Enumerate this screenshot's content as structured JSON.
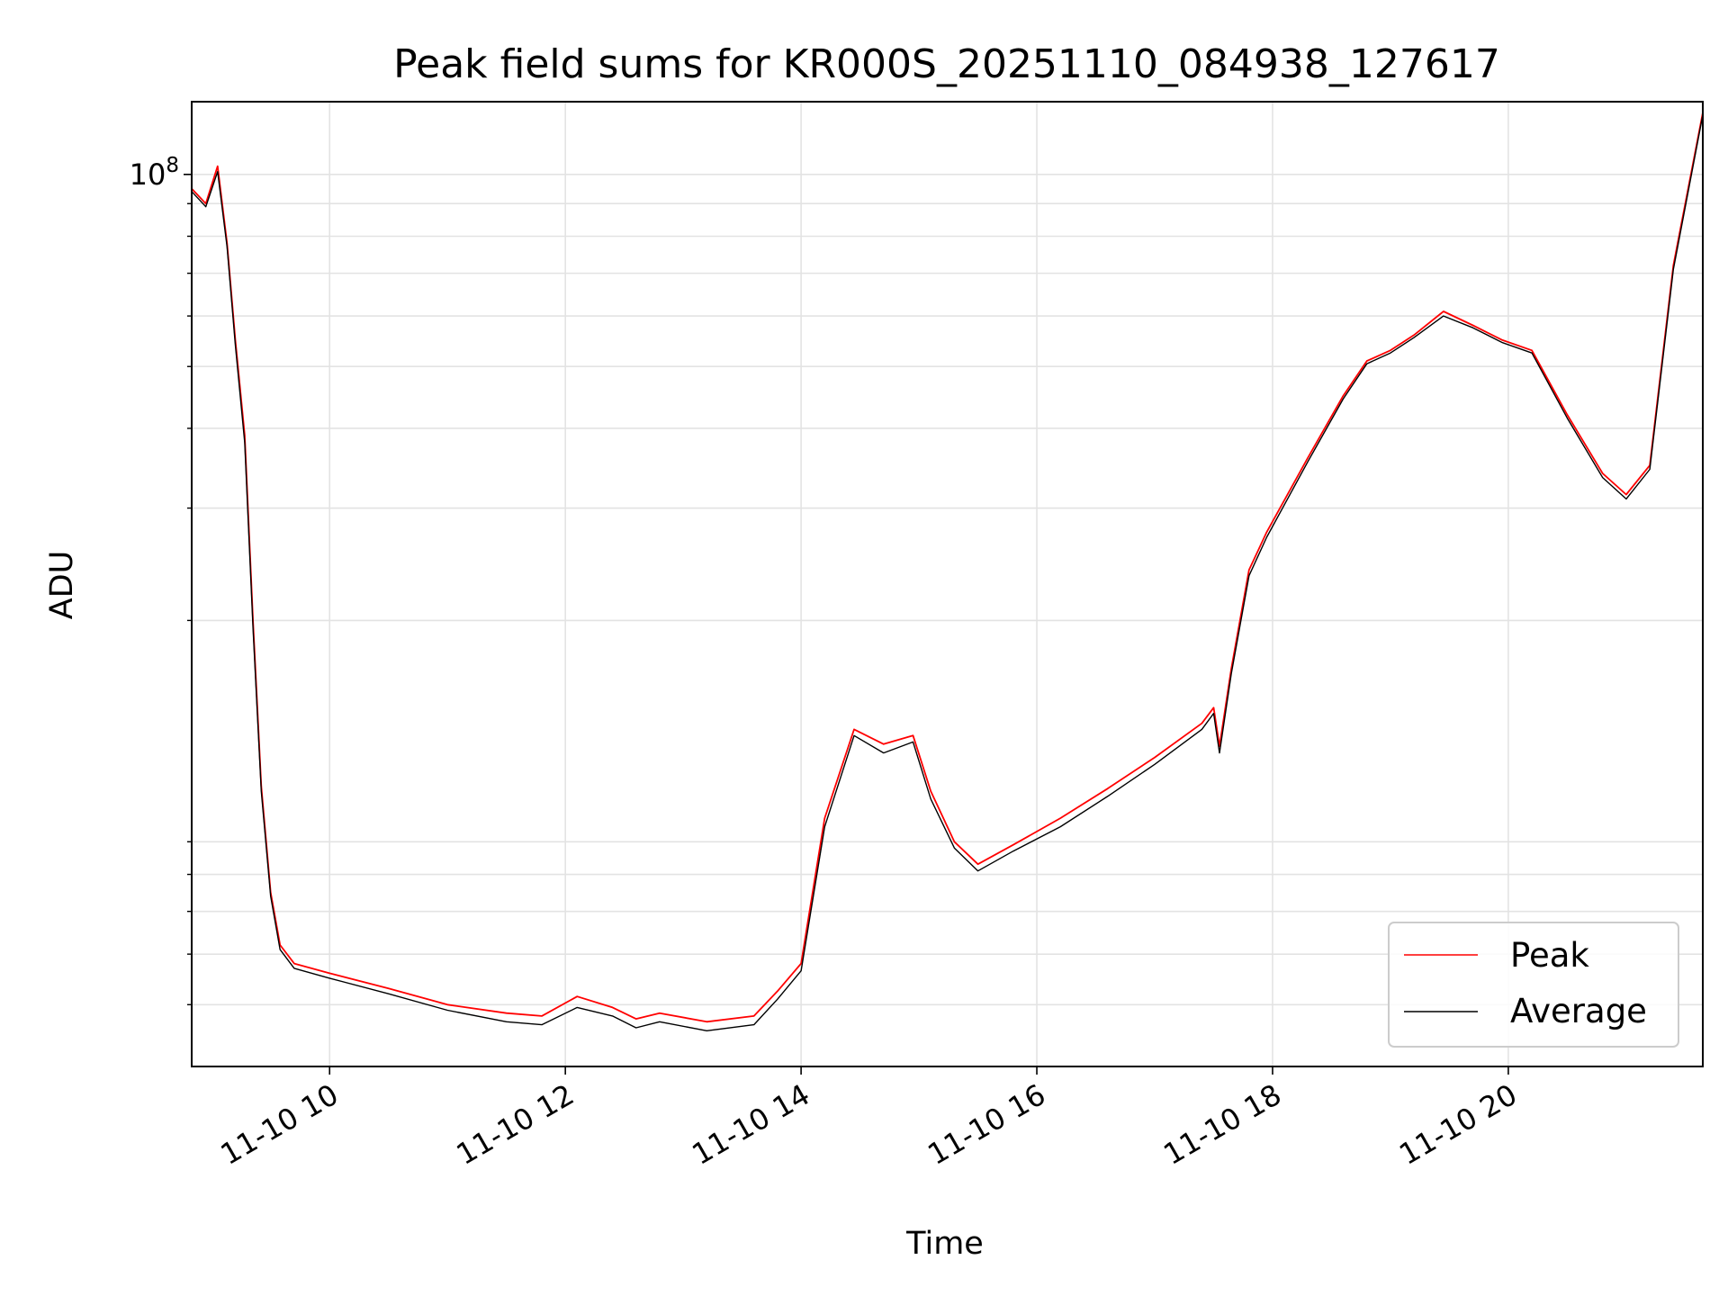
{
  "chart_data": {
    "type": "line",
    "title": "Peak field sums for KR000S_20251110_084938_127617",
    "xlabel": "Time",
    "ylabel": "ADU",
    "yscale": "log",
    "ylim": [
      4000000,
      130000000
    ],
    "xlim": [
      8.83,
      21.65
    ],
    "x_unit": "hours since 2025-11-10 00:00",
    "grid": true,
    "x_ticks": [
      {
        "value": 10,
        "label": "11-10 10"
      },
      {
        "value": 12,
        "label": "11-10 12"
      },
      {
        "value": 14,
        "label": "11-10 14"
      },
      {
        "value": 16,
        "label": "11-10 16"
      },
      {
        "value": 18,
        "label": "11-10 18"
      },
      {
        "value": 20,
        "label": "11-10 20"
      }
    ],
    "y_major_ticks": [
      {
        "value": 100000000,
        "base": "10",
        "exp": "8"
      }
    ],
    "y_minor_ticks": [
      5000000,
      6000000,
      7000000,
      8000000,
      9000000,
      20000000,
      30000000,
      40000000,
      50000000,
      60000000,
      70000000,
      80000000,
      90000000
    ],
    "legend": {
      "position": "lower-right"
    },
    "series": [
      {
        "name": "Peak",
        "color": "#ff0000",
        "x": [
          8.83,
          8.95,
          9.05,
          9.13,
          9.2,
          9.28,
          9.35,
          9.42,
          9.5,
          9.58,
          9.7,
          10.0,
          10.5,
          11.0,
          11.5,
          11.8,
          12.1,
          12.4,
          12.6,
          12.8,
          13.2,
          13.6,
          13.8,
          14.0,
          14.2,
          14.45,
          14.7,
          14.95,
          15.1,
          15.3,
          15.5,
          15.8,
          16.2,
          16.6,
          17.0,
          17.4,
          17.5,
          17.55,
          17.65,
          17.8,
          17.95,
          18.3,
          18.6,
          18.8,
          19.0,
          19.2,
          19.45,
          19.7,
          19.95,
          20.2,
          20.5,
          20.8,
          21.0,
          21.2,
          21.4,
          21.65
        ],
        "y": [
          95000000,
          90000000,
          103000000,
          78000000,
          55000000,
          39000000,
          20000000,
          11000000,
          7500000,
          6200000,
          5800000,
          5600000,
          5300000,
          5000000,
          4850000,
          4800000,
          5150000,
          4950000,
          4750000,
          4850000,
          4700000,
          4800000,
          5250000,
          5800000,
          9800000,
          13500000,
          12800000,
          13200000,
          10800000,
          9000000,
          8300000,
          8900000,
          9800000,
          10900000,
          12200000,
          13800000,
          14600000,
          12700000,
          16800000,
          24000000,
          27500000,
          36000000,
          45000000,
          51000000,
          53000000,
          56000000,
          61000000,
          58000000,
          55000000,
          53000000,
          42000000,
          34000000,
          31500000,
          35000000,
          72000000,
          125000000
        ]
      },
      {
        "name": "Average",
        "color": "#000000",
        "x": [
          8.83,
          8.95,
          9.05,
          9.13,
          9.2,
          9.28,
          9.35,
          9.42,
          9.5,
          9.58,
          9.7,
          10.0,
          10.5,
          11.0,
          11.5,
          11.8,
          12.1,
          12.4,
          12.6,
          12.8,
          13.2,
          13.6,
          13.8,
          14.0,
          14.2,
          14.45,
          14.7,
          14.95,
          15.1,
          15.3,
          15.5,
          15.8,
          16.2,
          16.6,
          17.0,
          17.4,
          17.5,
          17.55,
          17.65,
          17.8,
          17.95,
          18.3,
          18.6,
          18.8,
          19.0,
          19.2,
          19.45,
          19.7,
          19.95,
          20.2,
          20.5,
          20.8,
          21.0,
          21.2,
          21.4,
          21.65
        ],
        "y": [
          94000000,
          89000000,
          101000000,
          77000000,
          54000000,
          38000000,
          19500000,
          10800000,
          7400000,
          6100000,
          5700000,
          5500000,
          5200000,
          4900000,
          4700000,
          4650000,
          4950000,
          4800000,
          4600000,
          4700000,
          4550000,
          4650000,
          5100000,
          5650000,
          9500000,
          13200000,
          12400000,
          12900000,
          10500000,
          8800000,
          8100000,
          8700000,
          9500000,
          10600000,
          11900000,
          13500000,
          14300000,
          12400000,
          16500000,
          23500000,
          27000000,
          35500000,
          44500000,
          50500000,
          52500000,
          55500000,
          60000000,
          57500000,
          54500000,
          52500000,
          41500000,
          33500000,
          31000000,
          34500000,
          71000000,
          124000000
        ]
      }
    ]
  }
}
